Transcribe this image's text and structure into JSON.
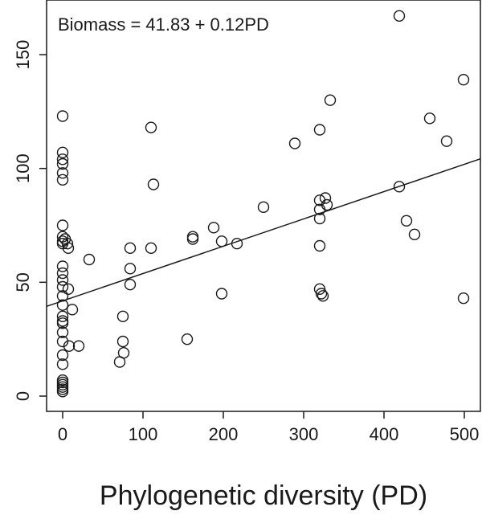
{
  "chart_data": {
    "type": "scatter",
    "title": "",
    "annotation": "Biomass = 41.83 + 0.12PD",
    "xlabel": "Phylogenetic diversity (PD)",
    "ylabel": "",
    "xlim": [
      -20,
      520
    ],
    "ylim": [
      -10,
      170
    ],
    "xticks": [
      0,
      100,
      200,
      300,
      400,
      500
    ],
    "yticks": [
      0,
      50,
      100,
      150
    ],
    "grid": false,
    "legend": "none",
    "regression": {
      "intercept": 41.83,
      "slope": 0.12
    },
    "point_color": "#1a1a1a",
    "points": [
      [
        0,
        123
      ],
      [
        0,
        107
      ],
      [
        0,
        104
      ],
      [
        0,
        102
      ],
      [
        0,
        98
      ],
      [
        0,
        95
      ],
      [
        0,
        75
      ],
      [
        0,
        70
      ],
      [
        0,
        68
      ],
      [
        0,
        67
      ],
      [
        0,
        57
      ],
      [
        0,
        54
      ],
      [
        0,
        51
      ],
      [
        0,
        48
      ],
      [
        0,
        44
      ],
      [
        0,
        40
      ],
      [
        0,
        35
      ],
      [
        0,
        33
      ],
      [
        0,
        32
      ],
      [
        0,
        28
      ],
      [
        0,
        24
      ],
      [
        0,
        18
      ],
      [
        0,
        14
      ],
      [
        0,
        7
      ],
      [
        0,
        6
      ],
      [
        0,
        5
      ],
      [
        0,
        4
      ],
      [
        0,
        3
      ],
      [
        0,
        2
      ],
      [
        3,
        69
      ],
      [
        6,
        67
      ],
      [
        7,
        65
      ],
      [
        7,
        47
      ],
      [
        8,
        22
      ],
      [
        12,
        38
      ],
      [
        20,
        22
      ],
      [
        33,
        60
      ],
      [
        71,
        15
      ],
      [
        75,
        35
      ],
      [
        75,
        24
      ],
      [
        76,
        19
      ],
      [
        84,
        65
      ],
      [
        84,
        56
      ],
      [
        84,
        49
      ],
      [
        110,
        118
      ],
      [
        110,
        65
      ],
      [
        113,
        93
      ],
      [
        155,
        25
      ],
      [
        162,
        70
      ],
      [
        162,
        69
      ],
      [
        188,
        74
      ],
      [
        198,
        45
      ],
      [
        198,
        68
      ],
      [
        217,
        67
      ],
      [
        250,
        83
      ],
      [
        289,
        111
      ],
      [
        320,
        117
      ],
      [
        320,
        86
      ],
      [
        320,
        82
      ],
      [
        320,
        78
      ],
      [
        320,
        66
      ],
      [
        320,
        47
      ],
      [
        322,
        45
      ],
      [
        324,
        44
      ],
      [
        327,
        87
      ],
      [
        329,
        84
      ],
      [
        333,
        130
      ],
      [
        419,
        167
      ],
      [
        419,
        92
      ],
      [
        428,
        77
      ],
      [
        438,
        71
      ],
      [
        457,
        122
      ],
      [
        478,
        112
      ],
      [
        499,
        139
      ],
      [
        499,
        43
      ]
    ]
  }
}
